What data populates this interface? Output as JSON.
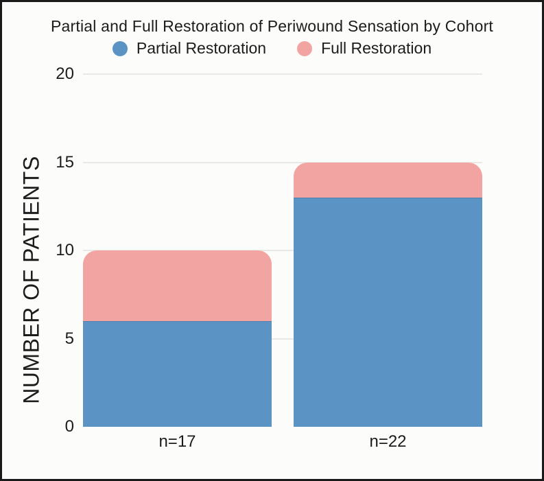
{
  "window": {
    "background": "#fcfcfa",
    "border_color": "#1a1a1a",
    "text_color": "#1c1c1c"
  },
  "chart_data": {
    "type": "bar",
    "stacked": true,
    "title": "Partial and Full Restoration of Periwound Sensation by Cohort",
    "categories": [
      "n=17",
      "n=22"
    ],
    "series": [
      {
        "name": "Partial Restoration",
        "color": "#5b93c4",
        "values": [
          6,
          13
        ]
      },
      {
        "name": "Full Restoration",
        "color": "#f2a4a2",
        "values": [
          4,
          2
        ]
      }
    ],
    "stack_totals": [
      10,
      15
    ],
    "xlabel": "",
    "ylabel": "NUMBER OF PATIENTS",
    "yticks": [
      0,
      5,
      10,
      15,
      20
    ],
    "ylim": [
      0,
      20
    ],
    "grid": true,
    "gridline_color": "#e8e8e5",
    "legend_position": "top"
  }
}
